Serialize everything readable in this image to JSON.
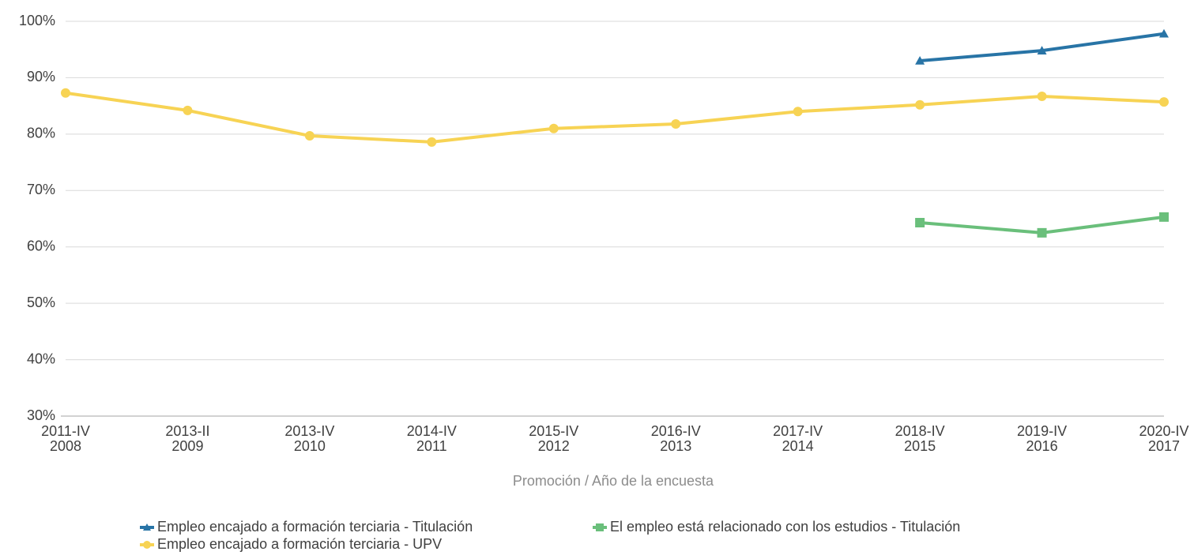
{
  "chart_data": {
    "type": "line",
    "xlabel": "Promoción / Año de la encuesta",
    "categories": [
      [
        "2011-IV",
        "2008"
      ],
      [
        "2013-II",
        "2009"
      ],
      [
        "2013-IV",
        "2010"
      ],
      [
        "2014-IV",
        "2011"
      ],
      [
        "2015-IV",
        "2012"
      ],
      [
        "2016-IV",
        "2013"
      ],
      [
        "2017-IV",
        "2014"
      ],
      [
        "2018-IV",
        "2015"
      ],
      [
        "2019-IV",
        "2016"
      ],
      [
        "2020-IV",
        "2017"
      ]
    ],
    "series": [
      {
        "name": "Empleo encajado a formación terciaria - Titulación",
        "color": "#2874a6",
        "marker": "triangle",
        "values": [
          null,
          null,
          null,
          null,
          null,
          null,
          null,
          93.0,
          94.8,
          97.8
        ]
      },
      {
        "name": "El empleo está relacionado con los estudios - Titulación",
        "color": "#6abf7b",
        "marker": "square",
        "values": [
          null,
          null,
          null,
          null,
          null,
          null,
          null,
          64.3,
          62.5,
          65.3
        ]
      },
      {
        "name": "Empleo encajado a formación terciaria - UPV",
        "color": "#f7d354",
        "marker": "circle",
        "values": [
          87.3,
          84.2,
          79.7,
          78.6,
          81.0,
          81.8,
          84.0,
          85.2,
          86.7,
          85.7
        ]
      }
    ],
    "ylim": [
      30,
      100
    ],
    "yticks": [
      {
        "value": 30,
        "label": "30%"
      },
      {
        "value": 40,
        "label": "40%"
      },
      {
        "value": 50,
        "label": "50%"
      },
      {
        "value": 60,
        "label": "60%"
      },
      {
        "value": 70,
        "label": "70%"
      },
      {
        "value": 80,
        "label": "80%"
      },
      {
        "value": 90,
        "label": "90%"
      },
      {
        "value": 100,
        "label": "100%"
      }
    ],
    "grid": true,
    "legend": "bottom"
  }
}
